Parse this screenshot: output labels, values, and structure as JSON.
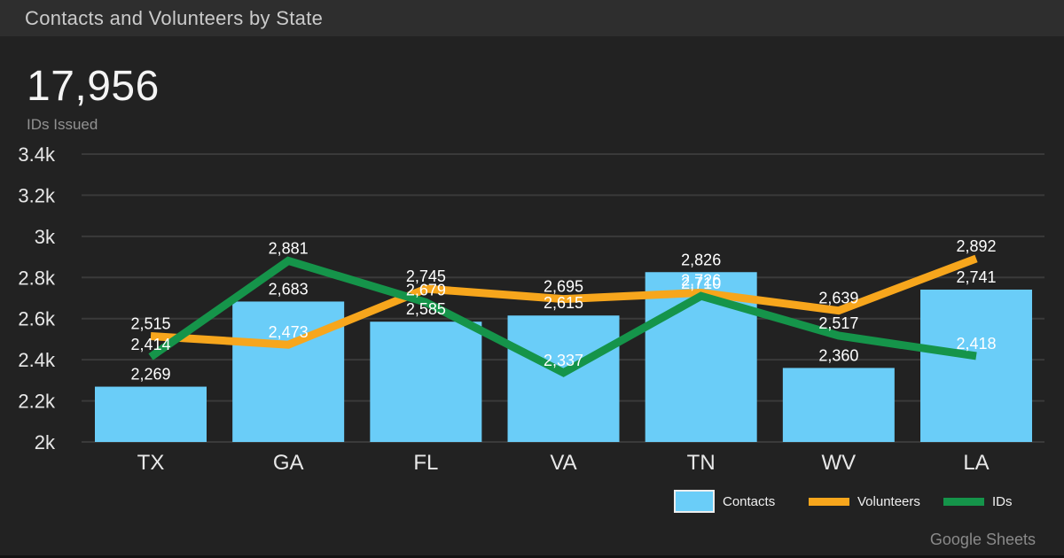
{
  "header": {
    "title": "Contacts and Volunteers by State"
  },
  "kpi": {
    "value": "17,956",
    "label": "IDs Issued"
  },
  "attribution": "Google Sheets",
  "colors": {
    "background": "#222222",
    "header_bg": "#2e2e2e",
    "gridline": "#3a3a3a",
    "bar": "#6acdf8",
    "volunteers": "#f7a61c",
    "ids": "#15944a",
    "data_label": "#ffffff",
    "axis_text": "#e8e8e8"
  },
  "legend": {
    "items": [
      {
        "label": "Contacts",
        "swatch": "bar",
        "color_key": "bar"
      },
      {
        "label": "Volunteers",
        "swatch": "line",
        "color_key": "volunteers"
      },
      {
        "label": "IDs",
        "swatch": "line",
        "color_key": "ids"
      }
    ]
  },
  "chart_data": {
    "type": "bar",
    "subtype": "combo-bar-line",
    "title": "Contacts and Volunteers by State",
    "categories": [
      "TX",
      "GA",
      "FL",
      "VA",
      "TN",
      "WV",
      "LA"
    ],
    "series": [
      {
        "name": "Contacts",
        "type": "bar",
        "color_key": "bar",
        "values": [
          2269,
          2683,
          2585,
          2615,
          2826,
          2360,
          2741
        ]
      },
      {
        "name": "Volunteers",
        "type": "line",
        "color_key": "volunteers",
        "values": [
          2515,
          2473,
          2745,
          2695,
          2726,
          2639,
          2892
        ]
      },
      {
        "name": "IDs",
        "type": "line",
        "color_key": "ids",
        "values": [
          2414,
          2881,
          2679,
          2337,
          2710,
          2517,
          2418
        ]
      }
    ],
    "ids_issued_total": 17956,
    "ylim": [
      2000,
      3400
    ],
    "ytick_values": [
      2000,
      2200,
      2400,
      2600,
      2800,
      3000,
      3200,
      3400
    ],
    "ytick_labels": [
      "2k",
      "2.2k",
      "2.4k",
      "2.6k",
      "2.8k",
      "3k",
      "3.2k",
      "3.4k"
    ],
    "grid": true,
    "data_labels": true,
    "legend_position": "bottom-right"
  }
}
